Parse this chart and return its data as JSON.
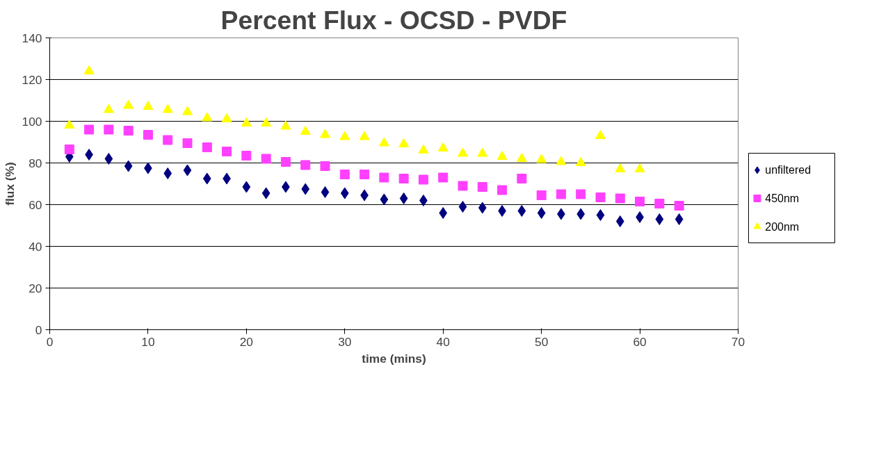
{
  "chart_data": {
    "type": "scatter",
    "title": "Percent Flux - OCSD - PVDF",
    "xlabel": "time (mins)",
    "ylabel": "flux (%)",
    "xlim": [
      0,
      70
    ],
    "xticks": [
      0,
      10,
      20,
      30,
      40,
      50,
      60,
      70
    ],
    "ylim": [
      0,
      140
    ],
    "yticks": [
      0,
      20,
      40,
      60,
      80,
      100,
      120,
      140
    ],
    "grid": "y",
    "legend": "right",
    "series": [
      {
        "name": "unfiltered",
        "color": "#000080",
        "marker": "diamond",
        "x": [
          2,
          4,
          6,
          8,
          10,
          12,
          14,
          16,
          18,
          20,
          22,
          24,
          26,
          28,
          30,
          32,
          34,
          36,
          38,
          40,
          42,
          44,
          46,
          48,
          50,
          52,
          54,
          56,
          58,
          60,
          62,
          64
        ],
        "values": [
          83,
          84,
          82,
          78.5,
          77.5,
          75,
          76.5,
          72.5,
          72.5,
          68.5,
          65.5,
          68.5,
          67.5,
          66,
          65.5,
          64.5,
          62.5,
          63,
          62,
          56,
          59,
          58.5,
          57,
          57,
          56,
          55.5,
          55.5,
          55,
          52,
          54,
          53,
          53
        ]
      },
      {
        "name": "450nm",
        "color": "#ff40ff",
        "marker": "square",
        "x": [
          2,
          4,
          6,
          8,
          10,
          12,
          14,
          16,
          18,
          20,
          22,
          24,
          26,
          28,
          30,
          32,
          34,
          36,
          38,
          40,
          42,
          44,
          46,
          48,
          50,
          52,
          54,
          56,
          58,
          60,
          62,
          64
        ],
        "values": [
          86.5,
          96,
          96,
          95.5,
          93.5,
          91,
          89.5,
          87.5,
          85.5,
          83.5,
          82,
          80.5,
          79,
          78.5,
          74.5,
          74.5,
          73,
          72.5,
          72,
          73,
          69,
          68.5,
          67,
          72.5,
          64.5,
          65,
          65,
          63.5,
          63,
          61.5,
          60.5,
          59.5
        ]
      },
      {
        "name": "200nm",
        "color": "#ffff00",
        "marker": "triangle",
        "x": [
          2,
          4,
          6,
          8,
          10,
          12,
          14,
          16,
          18,
          20,
          22,
          24,
          26,
          28,
          30,
          32,
          34,
          36,
          38,
          40,
          42,
          44,
          46,
          48,
          50,
          52,
          54,
          56,
          58,
          60
        ],
        "values": [
          98,
          124,
          105.5,
          107.5,
          107,
          105.5,
          104.5,
          101.5,
          101,
          99,
          99,
          97.5,
          95,
          93.5,
          92.5,
          92.5,
          89.5,
          89,
          86,
          87,
          84.5,
          84.5,
          83,
          82,
          81.5,
          80.5,
          80,
          93,
          77,
          77
        ]
      }
    ]
  }
}
